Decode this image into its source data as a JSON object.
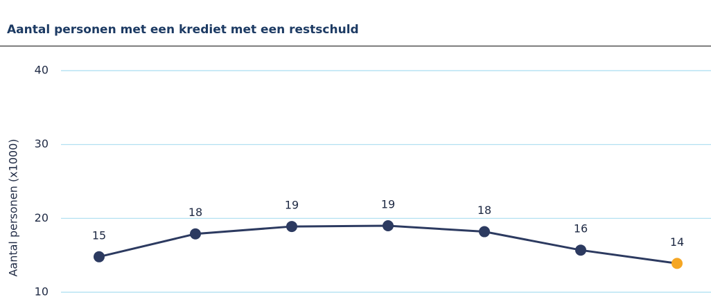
{
  "chart_data": {
    "type": "line",
    "title": "Aantal personen met een krediet met een restschuld",
    "y_label": "Aantal personen (x1000)",
    "categories": [
      null,
      null,
      null,
      null,
      null,
      null,
      null
    ],
    "series": [
      {
        "name": null,
        "color": "#2c3a60",
        "values": [
          14.8,
          17.9,
          18.9,
          19.0,
          18.2,
          15.7,
          13.9
        ],
        "value_labels": [
          "15",
          "18",
          "19",
          "19",
          "18",
          "16",
          "14"
        ],
        "point_colors": [
          "#2c3a60",
          "#2c3a60",
          "#2c3a60",
          "#2c3a60",
          "#2c3a60",
          "#2c3a60",
          "#f5a623"
        ]
      }
    ],
    "ylim": [
      10,
      40
    ],
    "yticks": [
      10,
      20,
      30,
      40
    ],
    "grid": true
  }
}
